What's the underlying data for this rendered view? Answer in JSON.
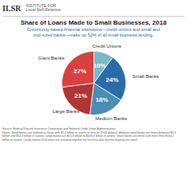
{
  "chart_data": {
    "type": "pie",
    "title": "Share of Loans Made to Small Businesses, 2018",
    "subtitle": "Community-based financial institutions—credit unions and small and\nmid-sized banks—make up 52% of all small business lending.",
    "categories": [
      "Credit Unions",
      "Small Banks",
      "Medium Banks",
      "Large Banks",
      "Giant Banks"
    ],
    "values": [
      10,
      24,
      18,
      21,
      27
    ],
    "value_labels": [
      "10%",
      "24%",
      "18%",
      "21%",
      "27%"
    ],
    "colors": [
      "#7ab8c8",
      "#2b6ca8",
      "#4a8db5",
      "#b03535",
      "#d94040"
    ],
    "data_labels": true,
    "annotations": [
      "ILSR",
      "INSTITUTE FOR",
      "Local Self-Reliance"
    ],
    "notes": "Source: Federal Deposit Insurance Corporation and National Credit Union Administration.\nNotes: Small banks are defined as those with $1.4 billion in assets or less (in 2018 dollars). Medium-sized banks are those between $1.4\nbillion and $14.3 billion in assets. Large banks are $14.3 billion to $100.2 billion in assets. Giant banks are those with more than $100.2\nbillion in assets. Credit unions of all sizes are included together for this final year but the majority are small."
  }
}
